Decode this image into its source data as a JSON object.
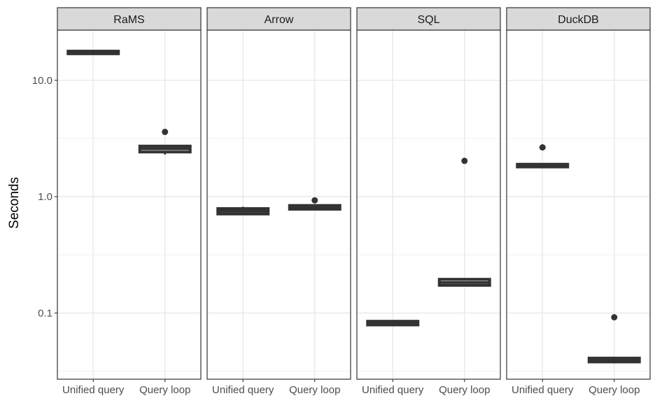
{
  "chart_data": {
    "type": "boxplot",
    "ylabel": "Seconds",
    "yscale": "log10",
    "ylim": [
      0.027,
      27
    ],
    "yticks": [
      0.1,
      1.0,
      10.0
    ],
    "ytick_labels": [
      "0.1",
      "1.0",
      "10.0"
    ],
    "categories": [
      "Unified query",
      "Query loop"
    ],
    "grid": true,
    "facets": [
      {
        "name": "RaMS",
        "boxes": [
          {
            "category": "Unified query",
            "min": 16.8,
            "q1": 16.9,
            "median": 17.2,
            "q3": 17.8,
            "max": 18.0,
            "outliers": []
          },
          {
            "category": "Query loop",
            "min": 2.3,
            "q1": 2.42,
            "median": 2.58,
            "q3": 2.72,
            "max": 2.78,
            "outliers": [
              3.6
            ]
          }
        ]
      },
      {
        "name": "Arrow",
        "boxes": [
          {
            "category": "Unified query",
            "min": 0.7,
            "q1": 0.71,
            "median": 0.75,
            "q3": 0.79,
            "max": 0.82,
            "outliers": []
          },
          {
            "category": "Query loop",
            "min": 0.77,
            "q1": 0.78,
            "median": 0.81,
            "q3": 0.84,
            "max": 0.85,
            "outliers": [
              0.93
            ]
          }
        ]
      },
      {
        "name": "SQL",
        "boxes": [
          {
            "category": "Unified query",
            "min": 0.078,
            "q1": 0.079,
            "median": 0.082,
            "q3": 0.085,
            "max": 0.087,
            "outliers": []
          },
          {
            "category": "Query loop",
            "min": 0.17,
            "q1": 0.173,
            "median": 0.183,
            "q3": 0.195,
            "max": 0.2,
            "outliers": [
              2.03
            ]
          }
        ]
      },
      {
        "name": "DuckDB",
        "boxes": [
          {
            "category": "Unified query",
            "min": 1.78,
            "q1": 1.8,
            "median": 1.85,
            "q3": 1.9,
            "max": 1.93,
            "outliers": [
              2.65
            ]
          },
          {
            "category": "Query loop",
            "min": 0.037,
            "q1": 0.038,
            "median": 0.04,
            "q3": 0.041,
            "max": 0.042,
            "outliers": [
              0.092
            ]
          }
        ]
      }
    ]
  }
}
